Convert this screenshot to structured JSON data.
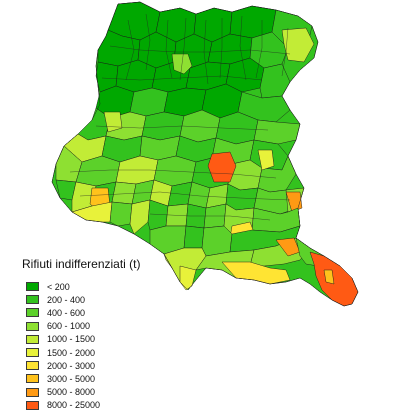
{
  "legend": {
    "title": "Rifiuti indifferenziati (t)",
    "classes": [
      {
        "label": "< 200",
        "color": "#00a800"
      },
      {
        "label": "200 - 400",
        "color": "#33c21e"
      },
      {
        "label": "400 - 600",
        "color": "#5cd12a"
      },
      {
        "label": "600 - 1000",
        "color": "#8ee032"
      },
      {
        "label": "1000 - 1500",
        "color": "#c2ec36"
      },
      {
        "label": "1500 - 2000",
        "color": "#e8f23a"
      },
      {
        "label": "2000 - 3000",
        "color": "#ffe433"
      },
      {
        "label": "3000 - 5000",
        "color": "#ffc21c"
      },
      {
        "label": "5000 - 8000",
        "color": "#ff9a14"
      },
      {
        "label": "8000 - 25000",
        "color": "#ff5a14"
      }
    ]
  }
}
